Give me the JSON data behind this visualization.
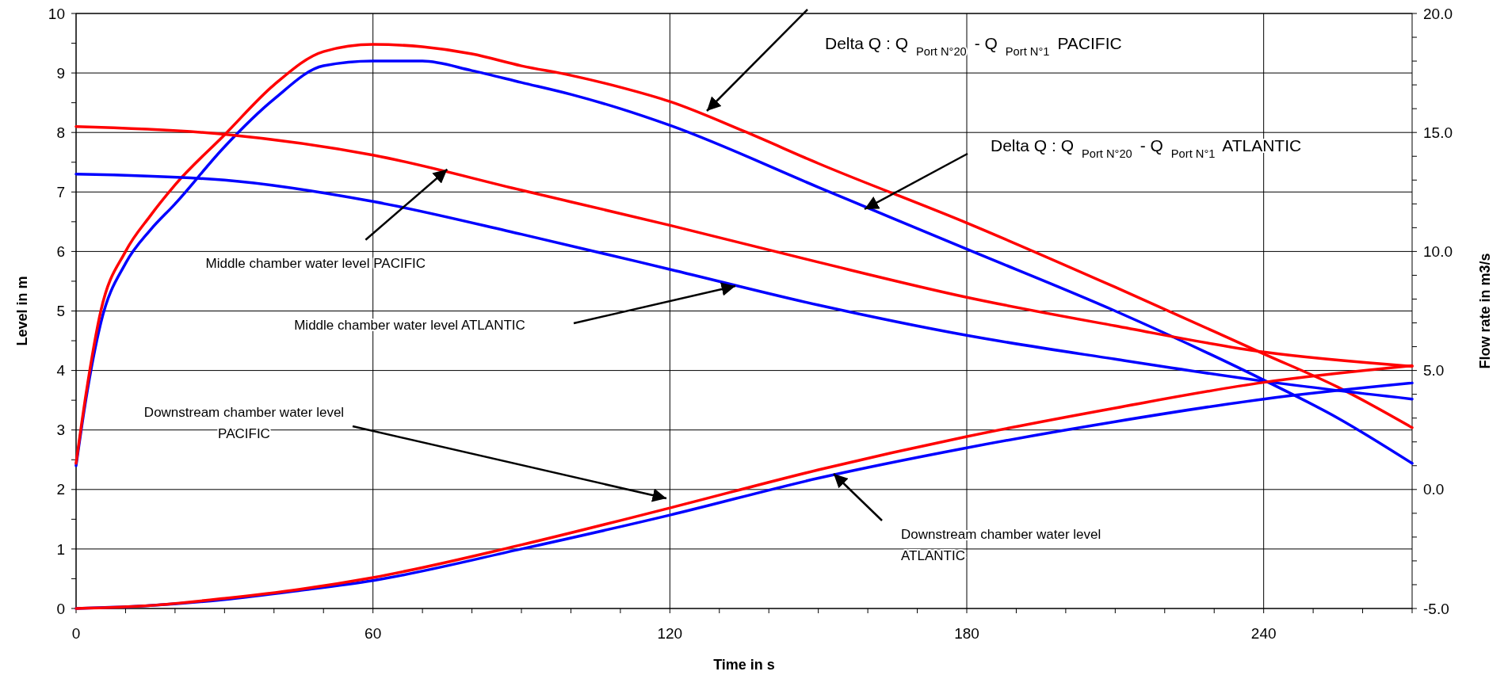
{
  "chart_data": {
    "type": "line",
    "xlabel": "Time in s",
    "ylabel": "Level in m",
    "y2label": "Flow rate in m3/s",
    "xlim": [
      0,
      270
    ],
    "xticks": [
      0,
      {
        "value": 10,
        "label": null
      },
      {
        "value": 20,
        "label": null
      },
      {
        "value": 30,
        "label": null
      },
      {
        "value": 40,
        "label": null
      },
      {
        "value": 50,
        "label": null
      },
      60,
      {
        "value": 70,
        "label": null
      },
      {
        "value": 80,
        "label": null
      },
      {
        "value": 90,
        "label": null
      },
      {
        "value": 100,
        "label": null
      },
      {
        "value": 110,
        "label": null
      },
      120,
      {
        "value": 130,
        "label": null
      },
      {
        "value": 140,
        "label": null
      },
      {
        "value": 150,
        "label": null
      },
      {
        "value": 160,
        "label": null
      },
      {
        "value": 170,
        "label": null
      },
      180,
      {
        "value": 190,
        "label": null
      },
      {
        "value": 200,
        "label": null
      },
      {
        "value": 210,
        "label": null
      },
      {
        "value": 220,
        "label": null
      },
      {
        "value": 230,
        "label": null
      },
      240,
      {
        "value": 250,
        "label": null
      },
      {
        "value": 260,
        "label": null
      },
      {
        "value": 270,
        "label": null
      }
    ],
    "ylim": [
      0,
      10
    ],
    "yticks": [
      0,
      {
        "value": 0.5,
        "label": null
      },
      1,
      {
        "value": 1.5,
        "label": null
      },
      2,
      {
        "value": 2.5,
        "label": null
      },
      3,
      {
        "value": 3.5,
        "label": null
      },
      4,
      {
        "value": 4.5,
        "label": null
      },
      5,
      {
        "value": 5.5,
        "label": null
      },
      6,
      {
        "value": 6.5,
        "label": null
      },
      7,
      {
        "value": 7.5,
        "label": null
      },
      8,
      {
        "value": 8.5,
        "label": null
      },
      9,
      {
        "value": 9.5,
        "label": null
      },
      10
    ],
    "y2lim": [
      -5,
      20
    ],
    "y2ticks": [
      {
        "value": -5,
        "label": "-5.0"
      },
      {
        "value": -4,
        "label": null
      },
      {
        "value": -3,
        "label": null
      },
      {
        "value": -2,
        "label": null
      },
      {
        "value": -1,
        "label": null
      },
      {
        "value": 0,
        "label": "0.0"
      },
      {
        "value": 1,
        "label": null
      },
      {
        "value": 2,
        "label": null
      },
      {
        "value": 3,
        "label": null
      },
      {
        "value": 4,
        "label": null
      },
      {
        "value": 5,
        "label": "5.0"
      },
      {
        "value": 6,
        "label": null
      },
      {
        "value": 7,
        "label": null
      },
      {
        "value": 8,
        "label": null
      },
      {
        "value": 9,
        "label": null
      },
      {
        "value": 10,
        "label": "10.0"
      },
      {
        "value": 11,
        "label": null
      },
      {
        "value": 12,
        "label": null
      },
      {
        "value": 13,
        "label": null
      },
      {
        "value": 14,
        "label": null
      },
      {
        "value": 15,
        "label": "15.0"
      },
      {
        "value": 16,
        "label": null
      },
      {
        "value": 17,
        "label": null
      },
      {
        "value": 18,
        "label": null
      },
      {
        "value": 19,
        "label": null
      },
      {
        "value": 20,
        "label": "20.0"
      }
    ],
    "grid": true,
    "series": [
      {
        "color": "#0000ff",
        "axis": "y2",
        "x": [
          0,
          2,
          5,
          10,
          15,
          20,
          30,
          40,
          50,
          60,
          70,
          80,
          90,
          100,
          110,
          120,
          150,
          180,
          210,
          240,
          255,
          270
        ],
        "values": [
          1.0,
          3.8,
          7.0,
          9.5,
          10.9,
          12.0,
          14.4,
          16.4,
          17.8,
          18.0,
          18.0,
          17.6,
          17.1,
          16.6,
          16.0,
          15.3,
          12.7,
          10.1,
          7.5,
          4.6,
          3.0,
          1.1
        ]
      },
      {
        "color": "#ff0000",
        "axis": "y2",
        "x": [
          0,
          2,
          5,
          10,
          15,
          20,
          30,
          40,
          50,
          60,
          70,
          80,
          90,
          100,
          110,
          120,
          135,
          150,
          180,
          210,
          240,
          255,
          270
        ],
        "values": [
          1.1,
          4.0,
          7.5,
          10.0,
          11.5,
          12.8,
          14.9,
          17.0,
          18.4,
          18.7,
          18.6,
          18.3,
          17.8,
          17.4,
          16.9,
          16.3,
          15.05,
          13.7,
          11.2,
          8.5,
          5.7,
          4.3,
          2.6
        ]
      },
      {
        "color": "#0000ff",
        "x": [
          0,
          30,
          60,
          90,
          120,
          150,
          180,
          210,
          240,
          270
        ],
        "values": [
          7.3,
          7.2,
          6.84,
          6.29,
          5.7,
          5.1,
          4.59,
          4.19,
          3.82,
          3.52
        ]
      },
      {
        "color": "#ff0000",
        "x": [
          0,
          30,
          60,
          90,
          120,
          150,
          180,
          210,
          240,
          270
        ],
        "values": [
          8.1,
          7.97,
          7.62,
          7.03,
          6.44,
          5.82,
          5.23,
          4.75,
          4.31,
          4.07
        ]
      },
      {
        "color": "#0000ff",
        "x": [
          0,
          15,
          30,
          45,
          60,
          90,
          120,
          150,
          180,
          210,
          240,
          270
        ],
        "values": [
          0,
          0.05,
          0.15,
          0.3,
          0.47,
          1.0,
          1.57,
          2.19,
          2.7,
          3.14,
          3.52,
          3.79
        ]
      },
      {
        "color": "#ff0000",
        "x": [
          0,
          15,
          30,
          45,
          60,
          90,
          120,
          150,
          180,
          210,
          240,
          270
        ],
        "values": [
          0,
          0.05,
          0.17,
          0.32,
          0.52,
          1.07,
          1.69,
          2.33,
          2.89,
          3.37,
          3.8,
          4.08
        ]
      }
    ],
    "annotations": [
      "Delta Q : Q $_{Port N°20}$ - Q $_{Port N°1}$ PACIFIC",
      "Delta Q : Q $_{Port N°20}$ - Q $_{Port N°1}$ ATLANTIC",
      {
        "text": "Middle chamber water level PACIFIC",
        "x": 75,
        "y": 7.38
      },
      "Middle chamber water level ATLANTIC",
      "Downstream chamber water level PACIFIC",
      "Downstream chamber water level ATLANTIC"
    ]
  }
}
